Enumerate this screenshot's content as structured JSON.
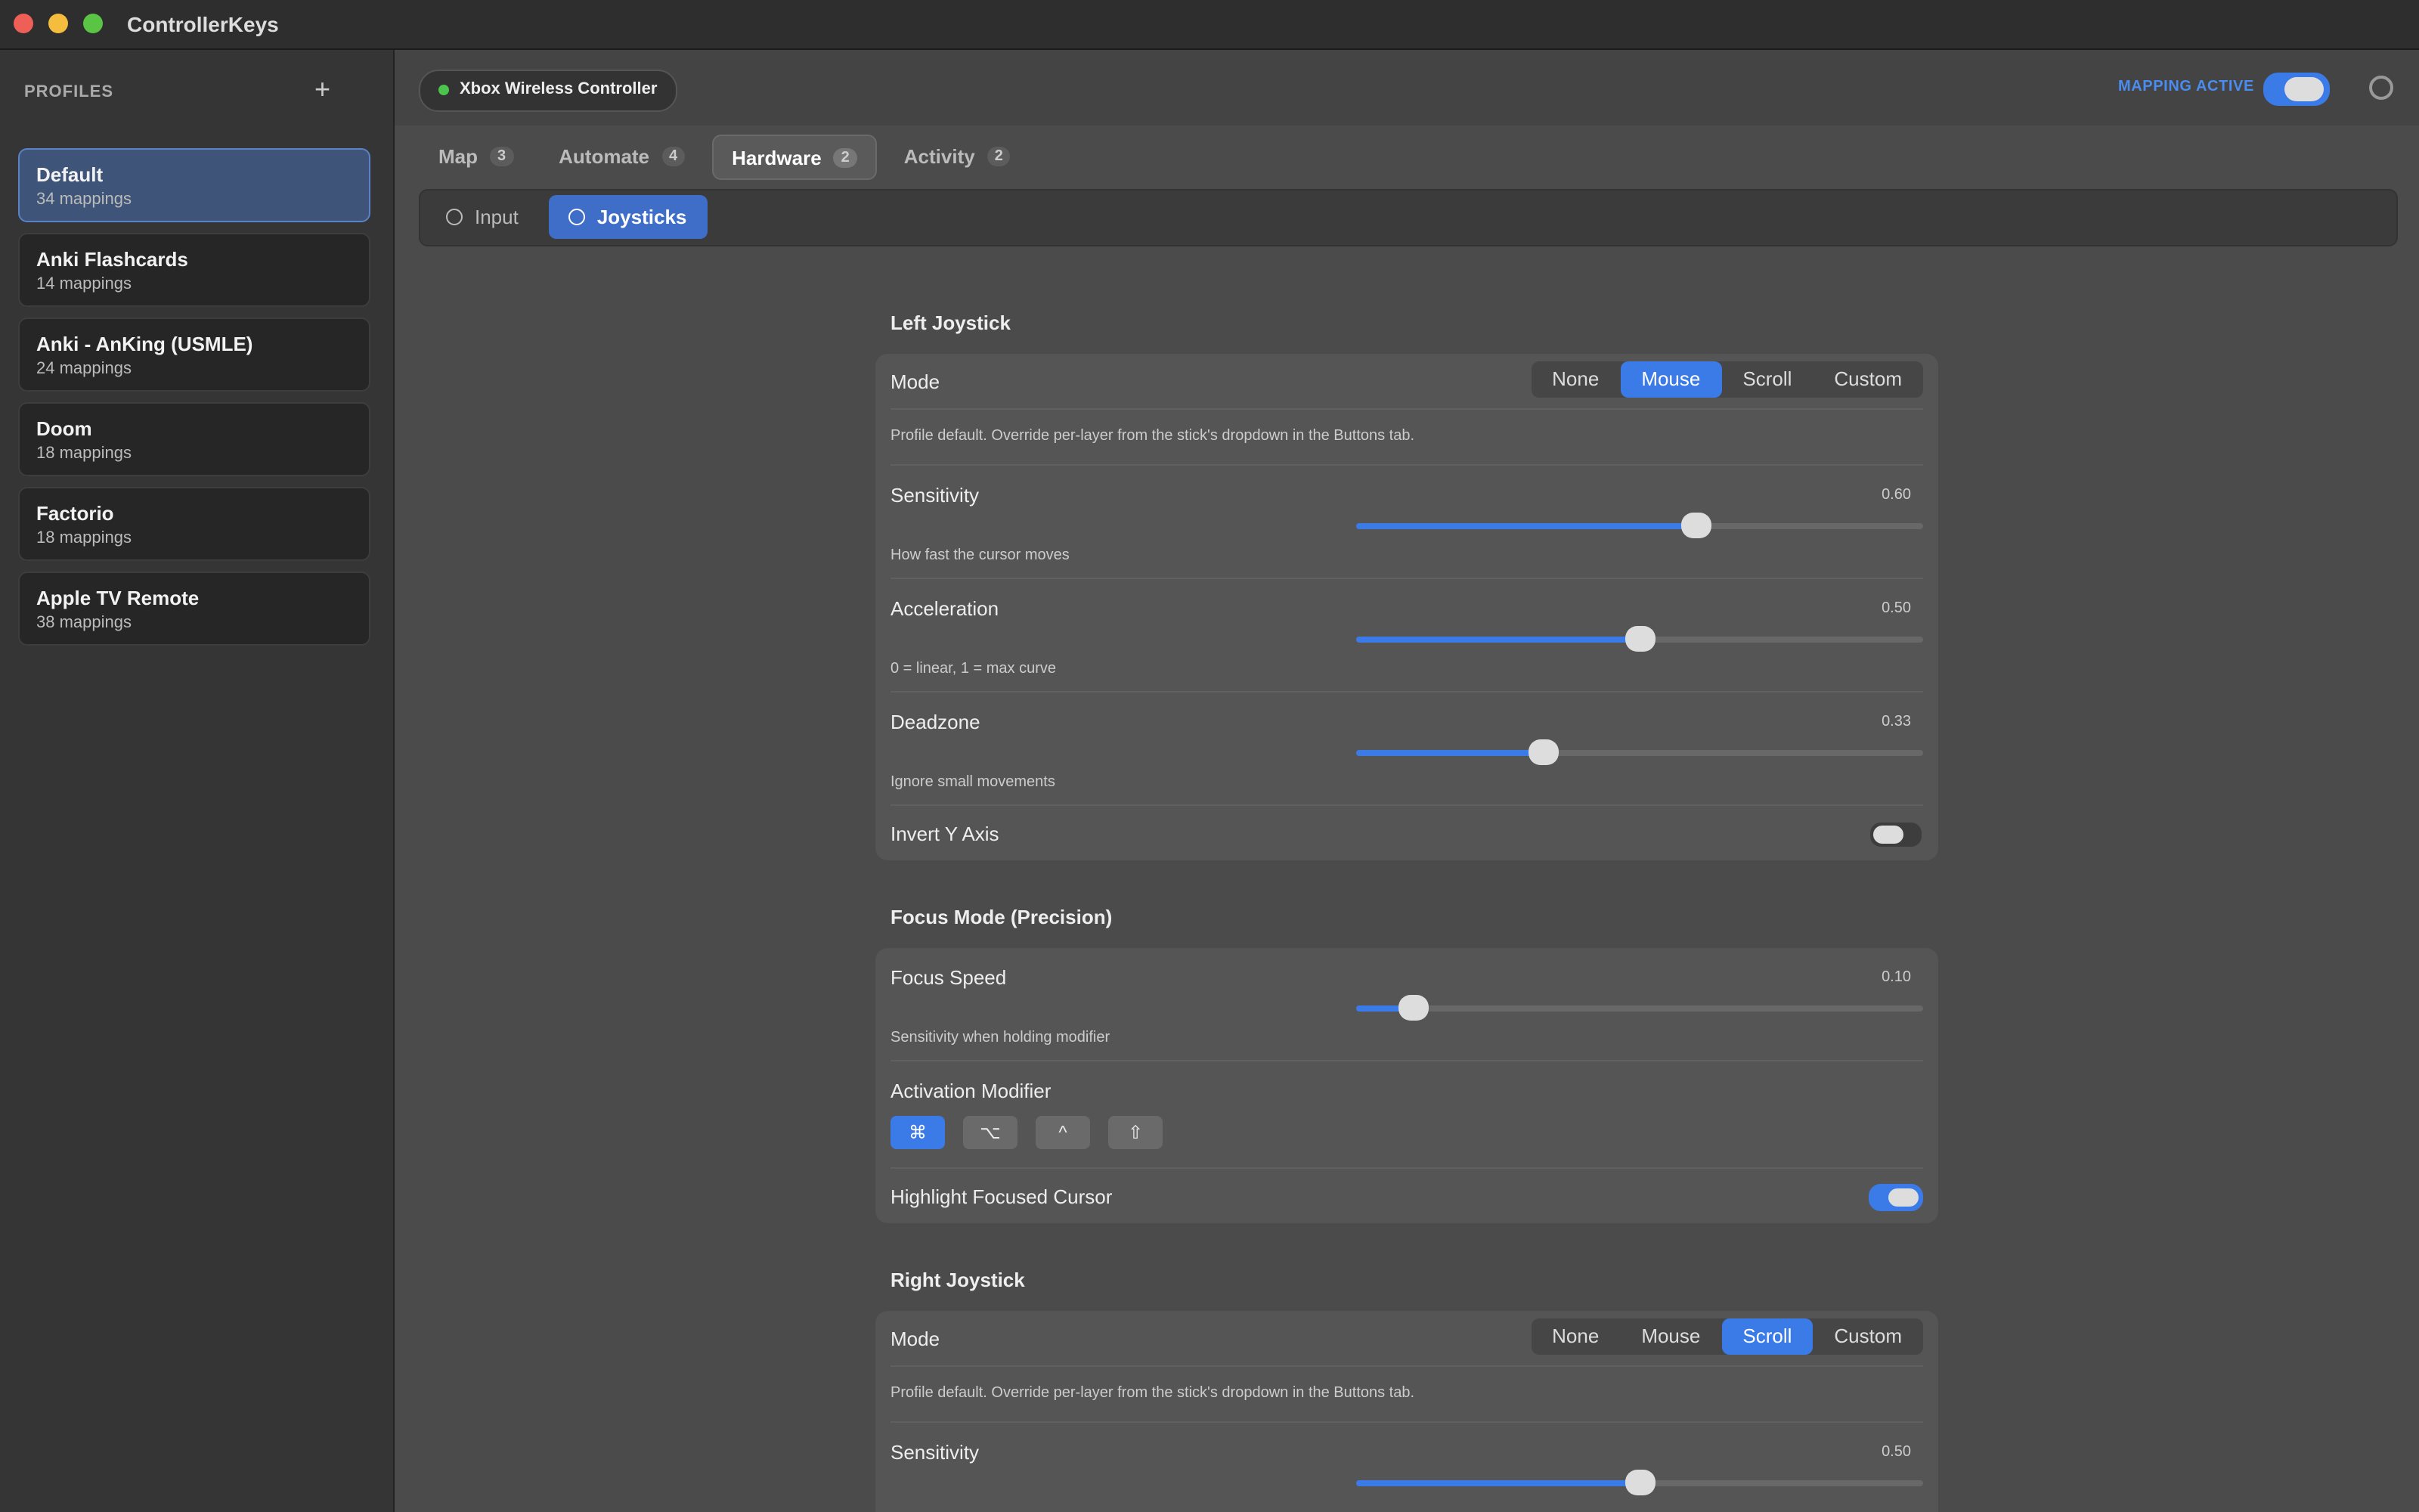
{
  "window": {
    "title": "ControllerKeys"
  },
  "sidebar": {
    "heading": "PROFILES",
    "add": "+",
    "profiles": [
      {
        "name": "Default",
        "count": "34 mappings",
        "selected": true
      },
      {
        "name": "Anki Flashcards",
        "count": "14 mappings"
      },
      {
        "name": "Anki - AnKing (USMLE)",
        "count": "24 mappings"
      },
      {
        "name": "Doom",
        "count": "18 mappings"
      },
      {
        "name": "Factorio",
        "count": "18 mappings"
      },
      {
        "name": "Apple TV Remote",
        "count": "38 mappings"
      }
    ]
  },
  "header": {
    "device": "Xbox Wireless Controller",
    "status": "MAPPING ACTIVE",
    "active": true
  },
  "tabs": [
    {
      "label": "Map",
      "count": 3
    },
    {
      "label": "Automate",
      "count": 4
    },
    {
      "label": "Hardware",
      "count": 2,
      "selected": true
    },
    {
      "label": "Activity",
      "count": 2
    }
  ],
  "subtabs": [
    {
      "label": "Input"
    },
    {
      "label": "Joysticks",
      "selected": true
    }
  ],
  "sections": [
    {
      "title": "Left Joystick",
      "rows": [
        {
          "kind": "mode",
          "label": "Mode",
          "options": [
            "None",
            "Mouse",
            "Scroll",
            "Custom"
          ],
          "selected": 1
        },
        {
          "kind": "note",
          "text": "Profile default. Override per-layer from the stick's dropdown in the Buttons tab."
        },
        {
          "kind": "slider",
          "label": "Sensitivity",
          "value": "0.60",
          "caption": "How fast the cursor moves"
        },
        {
          "kind": "slider",
          "label": "Acceleration",
          "value": "0.50",
          "caption": "0 = linear, 1 = max curve"
        },
        {
          "kind": "slider",
          "label": "Deadzone",
          "value": "0.33",
          "caption": "Ignore small movements"
        },
        {
          "kind": "toggle",
          "label": "Invert Y Axis",
          "on": false
        }
      ]
    },
    {
      "title": "Focus Mode (Precision)",
      "rows": [
        {
          "kind": "slider",
          "label": "Focus Speed",
          "value": "0.10",
          "caption": "Sensitivity when holding modifier"
        },
        {
          "kind": "modifier",
          "label": "Activation Modifier",
          "keys": [
            "⌘",
            "⌥",
            "^",
            "⇧"
          ],
          "selected": 0
        },
        {
          "kind": "toggle",
          "label": "Highlight Focused Cursor",
          "on": true
        }
      ]
    },
    {
      "title": "Right Joystick",
      "rows": [
        {
          "kind": "mode",
          "label": "Mode",
          "options": [
            "None",
            "Mouse",
            "Scroll",
            "Custom"
          ],
          "selected": 2
        },
        {
          "kind": "note",
          "text": "Profile default. Override per-layer from the stick's dropdown in the Buttons tab."
        },
        {
          "kind": "slider",
          "label": "Sensitivity",
          "value": "0.50",
          "caption": ""
        }
      ]
    }
  ]
}
